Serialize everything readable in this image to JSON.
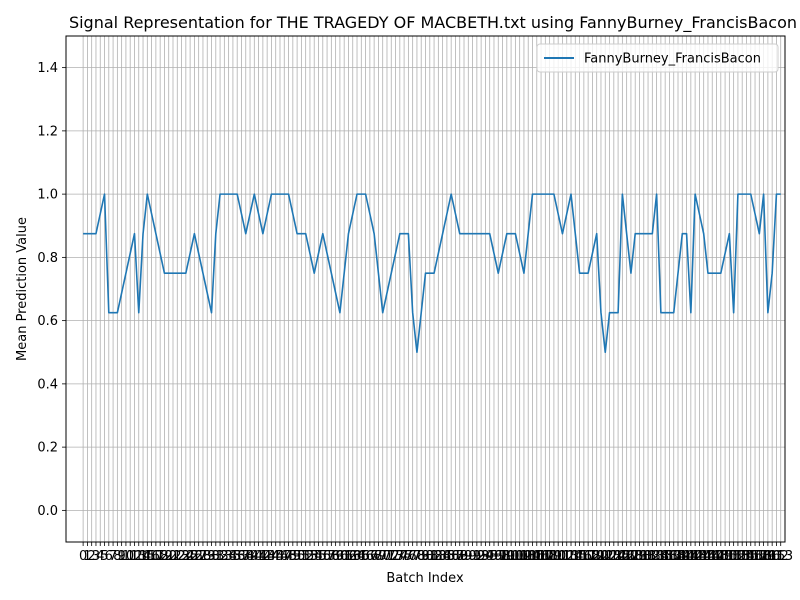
{
  "chart_data": {
    "type": "line",
    "title": "Signal Representation for THE TRAGEDY OF MACBETH.txt using FannyBurney_FrancisBacon",
    "xlabel": "Batch Index",
    "ylabel": "Mean Prediction Value",
    "xlim": [
      -4,
      164
    ],
    "ylim": [
      -0.1,
      1.5
    ],
    "y_ticks": [
      0.0,
      0.2,
      0.4,
      0.6,
      0.8,
      1.0,
      1.2,
      1.4
    ],
    "y_tick_labels": [
      "0.0",
      "0.2",
      "0.4",
      "0.6",
      "0.8",
      "1.0",
      "1.2",
      "1.4"
    ],
    "grid": true,
    "legend_position": "upper right",
    "series": [
      {
        "name": "FannyBurney_FrancisBacon",
        "color": "#1f77b4",
        "x_start": 0,
        "values": [
          0.875,
          0.875,
          0.875,
          0.875,
          0.9375,
          1.0,
          0.625,
          0.625,
          0.625,
          0.6875,
          0.75,
          0.8125,
          0.875,
          0.625,
          0.875,
          1.0,
          0.9375,
          0.875,
          0.8125,
          0.75,
          0.75,
          0.75,
          0.75,
          0.75,
          0.75,
          0.8125,
          0.875,
          0.8125,
          0.75,
          0.6875,
          0.625,
          0.875,
          1.0,
          1.0,
          1.0,
          1.0,
          1.0,
          0.9375,
          0.875,
          0.9375,
          1.0,
          0.9375,
          0.875,
          0.9375,
          1.0,
          1.0,
          1.0,
          1.0,
          1.0,
          0.9375,
          0.875,
          0.875,
          0.875,
          0.8125,
          0.75,
          0.8125,
          0.875,
          0.8125,
          0.75,
          0.6875,
          0.625,
          0.75,
          0.875,
          0.9375,
          1.0,
          1.0,
          1.0,
          0.9375,
          0.875,
          0.75,
          0.625,
          0.6875,
          0.75,
          0.8125,
          0.875,
          0.875,
          0.875,
          0.625,
          0.5,
          0.625,
          0.75,
          0.75,
          0.75,
          0.8125,
          0.875,
          0.9375,
          1.0,
          0.9375,
          0.875,
          0.875,
          0.875,
          0.875,
          0.875,
          0.875,
          0.875,
          0.875,
          0.8125,
          0.75,
          0.8125,
          0.875,
          0.875,
          0.875,
          0.8125,
          0.75,
          0.875,
          1.0,
          1.0,
          1.0,
          1.0,
          1.0,
          1.0,
          0.9375,
          0.875,
          0.9375,
          1.0,
          0.875,
          0.75,
          0.75,
          0.75,
          0.8125,
          0.875,
          0.625,
          0.5,
          0.625,
          0.625,
          0.625,
          1.0,
          0.875,
          0.75,
          0.875,
          0.875,
          0.875,
          0.875,
          0.875,
          1.0,
          0.625,
          0.625,
          0.625,
          0.625,
          0.75,
          0.875,
          0.875,
          0.625,
          1.0,
          0.9375,
          0.875,
          0.75,
          0.75,
          0.75,
          0.75,
          0.8125,
          0.875,
          0.625,
          1.0,
          1.0,
          1.0,
          1.0,
          0.9375,
          0.875,
          1.0,
          0.625,
          0.75,
          1.0,
          1.0
        ]
      }
    ]
  }
}
